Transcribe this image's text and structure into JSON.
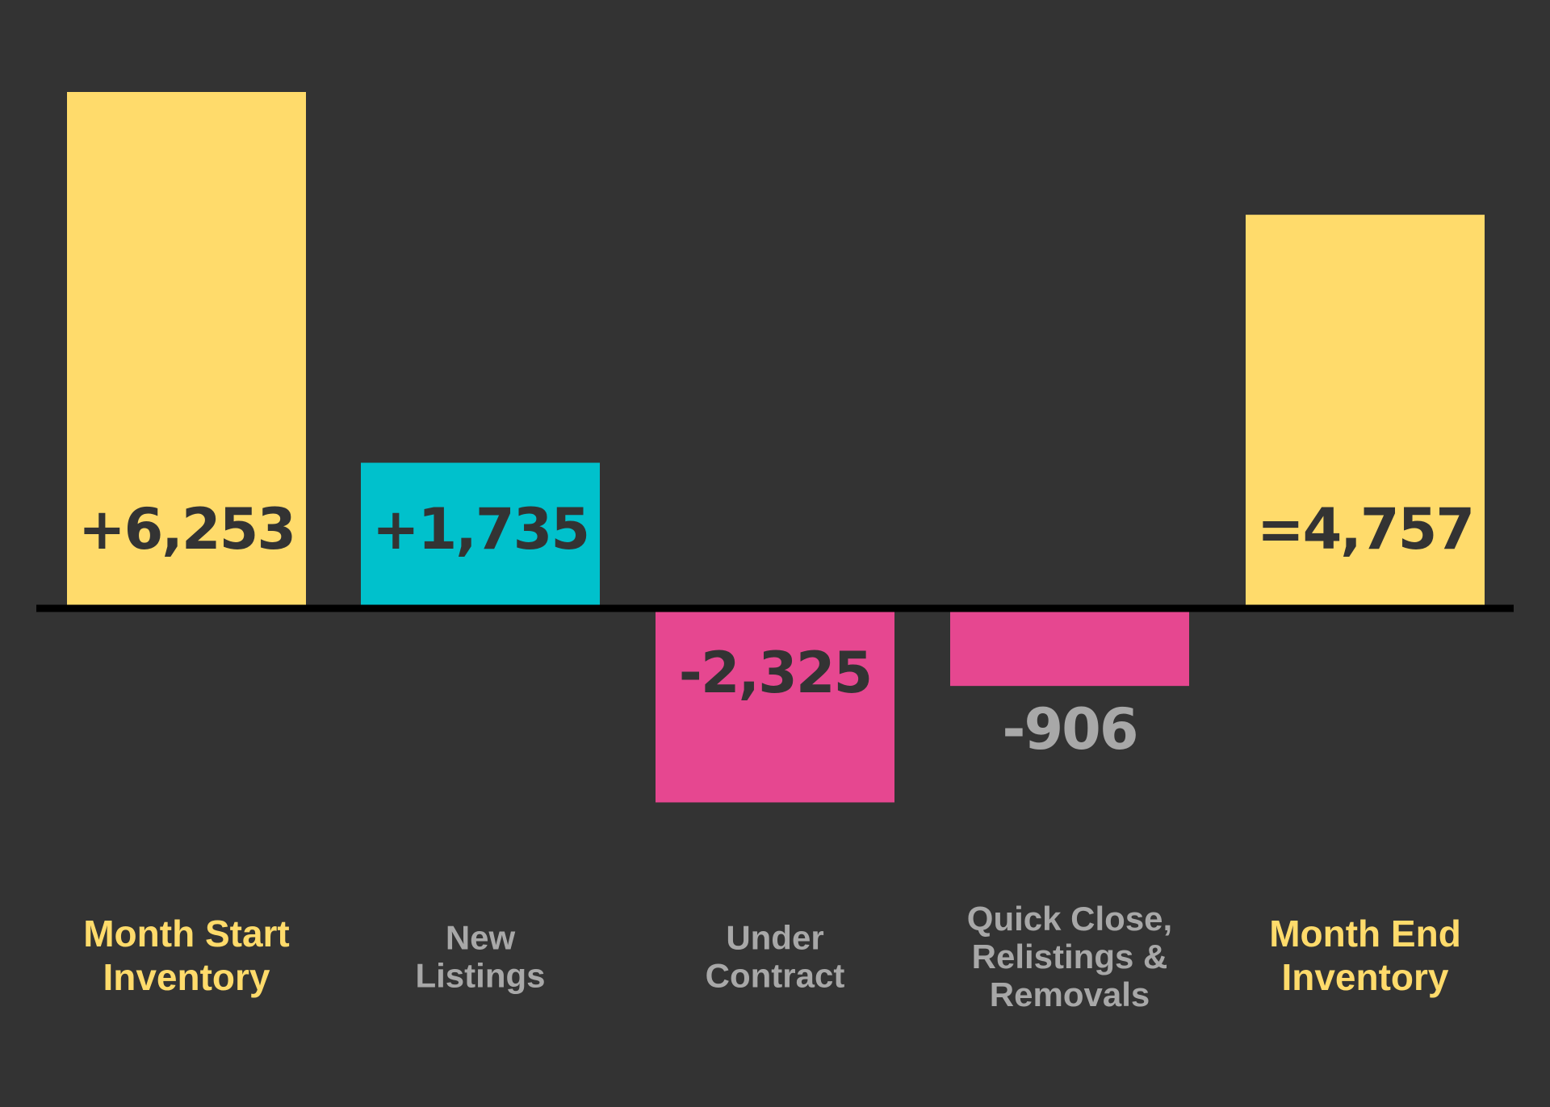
{
  "chart_data": {
    "type": "bar",
    "categories": [
      [
        "Month Start",
        "Inventory"
      ],
      [
        "New",
        "Listings"
      ],
      [
        "Under",
        "Contract"
      ],
      [
        "Quick Close,",
        "Relistings &",
        "Removals"
      ],
      [
        "Month End",
        "Inventory"
      ]
    ],
    "values": [
      6253,
      1735,
      -2325,
      -906,
      4757
    ],
    "labels": [
      "+6,253",
      "+1,735",
      "-2,325",
      "-906",
      "=4,757"
    ],
    "ylim": [
      -6253,
      6253
    ],
    "grid": false,
    "title": "",
    "xlabel": "",
    "ylabel": ""
  },
  "colors": {
    "background": "#333333",
    "total": "#FFDB6B",
    "increase": "#00C1CC",
    "decrease": "#E64790",
    "muted_text": "#A8A8A8",
    "dark_text": "#333333",
    "baseline": "#000000"
  }
}
